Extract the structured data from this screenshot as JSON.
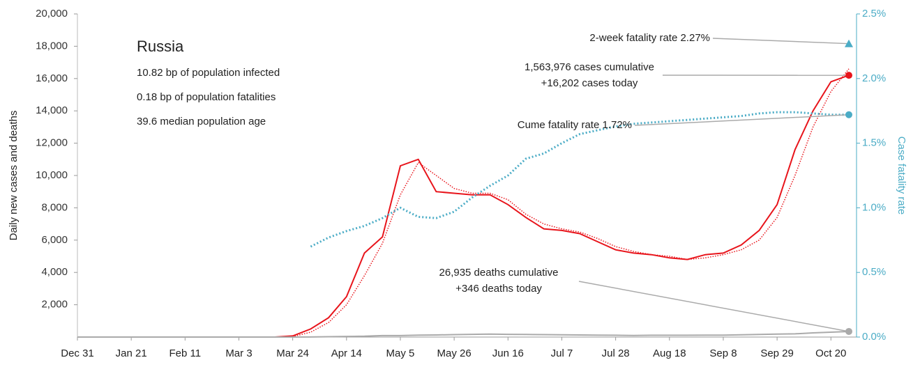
{
  "chart_data": {
    "type": "line",
    "info": {
      "title": "Russia",
      "lines": [
        "10.82 bp of population infected",
        "0.18 bp of population fatalities",
        "39.6 median population age"
      ]
    },
    "ylabel": "Daily new cases and deaths",
    "y2label": "Case fatality rate",
    "categories": [
      "Dec 31",
      null,
      null,
      "Jan 21",
      null,
      null,
      "Feb 11",
      null,
      null,
      "Mar 3",
      null,
      null,
      "Mar 24",
      null,
      null,
      "Apr 14",
      null,
      null,
      "May 5",
      null,
      null,
      "May 26",
      null,
      null,
      "Jun 16",
      null,
      null,
      "Jul 7",
      null,
      null,
      "Jul 28",
      null,
      null,
      "Aug 18",
      null,
      null,
      "Sep 8",
      null,
      null,
      "Sep 29",
      null,
      null,
      "Oct 20",
      null
    ],
    "series": [
      {
        "color": "#e8141b",
        "dash": "solid",
        "axis": "y",
        "values": [
          0,
          0,
          0,
          0,
          0,
          0,
          0,
          0,
          0,
          0,
          0,
          0,
          70,
          500,
          1200,
          2500,
          5200,
          6200,
          10600,
          11000,
          9000,
          8900,
          8800,
          8800,
          8200,
          7400,
          6700,
          6600,
          6400,
          5900,
          5400,
          5200,
          5100,
          4900,
          4800,
          5100,
          5200,
          5700,
          6600,
          8200,
          11600,
          14000,
          15800,
          16202
        ]
      },
      {
        "color": "#e8141b",
        "dash": "dotted",
        "axis": "y",
        "values": [
          0,
          0,
          0,
          0,
          0,
          0,
          0,
          0,
          0,
          0,
          0,
          0,
          30,
          300,
          900,
          2000,
          3800,
          5800,
          8800,
          10800,
          10000,
          9200,
          8900,
          8900,
          8500,
          7600,
          7000,
          6700,
          6500,
          6100,
          5600,
          5300,
          5100,
          5000,
          4800,
          4900,
          5100,
          5400,
          6000,
          7400,
          10000,
          13000,
          15200,
          16600
        ]
      },
      {
        "color": "#aaaaaa",
        "dash": "solid",
        "axis": "y",
        "values": [
          0,
          0,
          0,
          0,
          0,
          0,
          0,
          0,
          0,
          0,
          0,
          0,
          0,
          5,
          20,
          40,
          50,
          90,
          90,
          120,
          130,
          150,
          170,
          180,
          170,
          160,
          150,
          140,
          130,
          120,
          110,
          100,
          110,
          110,
          110,
          120,
          120,
          140,
          160,
          180,
          200,
          260,
          300,
          346
        ]
      },
      {
        "color": "#4bacc6",
        "dash": "dotted",
        "axis": "y2",
        "values": [
          null,
          null,
          null,
          null,
          null,
          null,
          null,
          null,
          null,
          null,
          null,
          null,
          null,
          0.7,
          0.77,
          0.82,
          0.86,
          0.92,
          1.0,
          0.93,
          0.92,
          0.97,
          1.08,
          1.17,
          1.25,
          1.38,
          1.42,
          1.5,
          1.57,
          1.6,
          1.63,
          1.65,
          1.66,
          1.67,
          1.68,
          1.69,
          1.7,
          1.71,
          1.73,
          1.74,
          1.74,
          1.73,
          1.72,
          1.72
        ]
      }
    ],
    "annotations": [
      {
        "text": [
          "2-week fatality rate 2.27%"
        ],
        "value": 2.27,
        "axis": "y2",
        "marker": "triangle",
        "color": "#4bacc6"
      },
      {
        "text": [
          "1,563,976 cases cumulative",
          "+16,202 cases today"
        ],
        "value": 16202,
        "axis": "y",
        "marker": "circle",
        "color": "#e8141b"
      },
      {
        "text": [
          "Cume fatality rate 1.72%"
        ],
        "value": 1.72,
        "axis": "y2",
        "marker": "circle",
        "color": "#4bacc6"
      },
      {
        "text": [
          "26,935 deaths cumulative",
          "+346 deaths today"
        ],
        "value": 346,
        "axis": "y",
        "marker": "circle",
        "color": "#aaaaaa"
      }
    ],
    "ylim": [
      0,
      20000
    ],
    "yticks": [
      {
        "value": 2000,
        "label": "2,000"
      },
      {
        "value": 4000,
        "label": "4,000"
      },
      {
        "value": 6000,
        "label": "6,000"
      },
      {
        "value": 8000,
        "label": "8,000"
      },
      {
        "value": 10000,
        "label": "10,000"
      },
      {
        "value": 12000,
        "label": "12,000"
      },
      {
        "value": 14000,
        "label": "14,000"
      },
      {
        "value": 16000,
        "label": "16,000"
      },
      {
        "value": 18000,
        "label": "18,000"
      },
      {
        "value": 20000,
        "label": "20,000"
      }
    ],
    "y2lim": [
      0,
      2.5
    ],
    "y2ticks": [
      {
        "value": 0,
        "label": "0.0%"
      },
      {
        "value": 0.5,
        "label": "0.5%"
      },
      {
        "value": 1,
        "label": "1.0%"
      },
      {
        "value": 1.5,
        "label": "1.5%"
      },
      {
        "value": 2,
        "label": "2.0%"
      },
      {
        "value": 2.5,
        "label": "2.5%"
      }
    ],
    "grid": false
  }
}
